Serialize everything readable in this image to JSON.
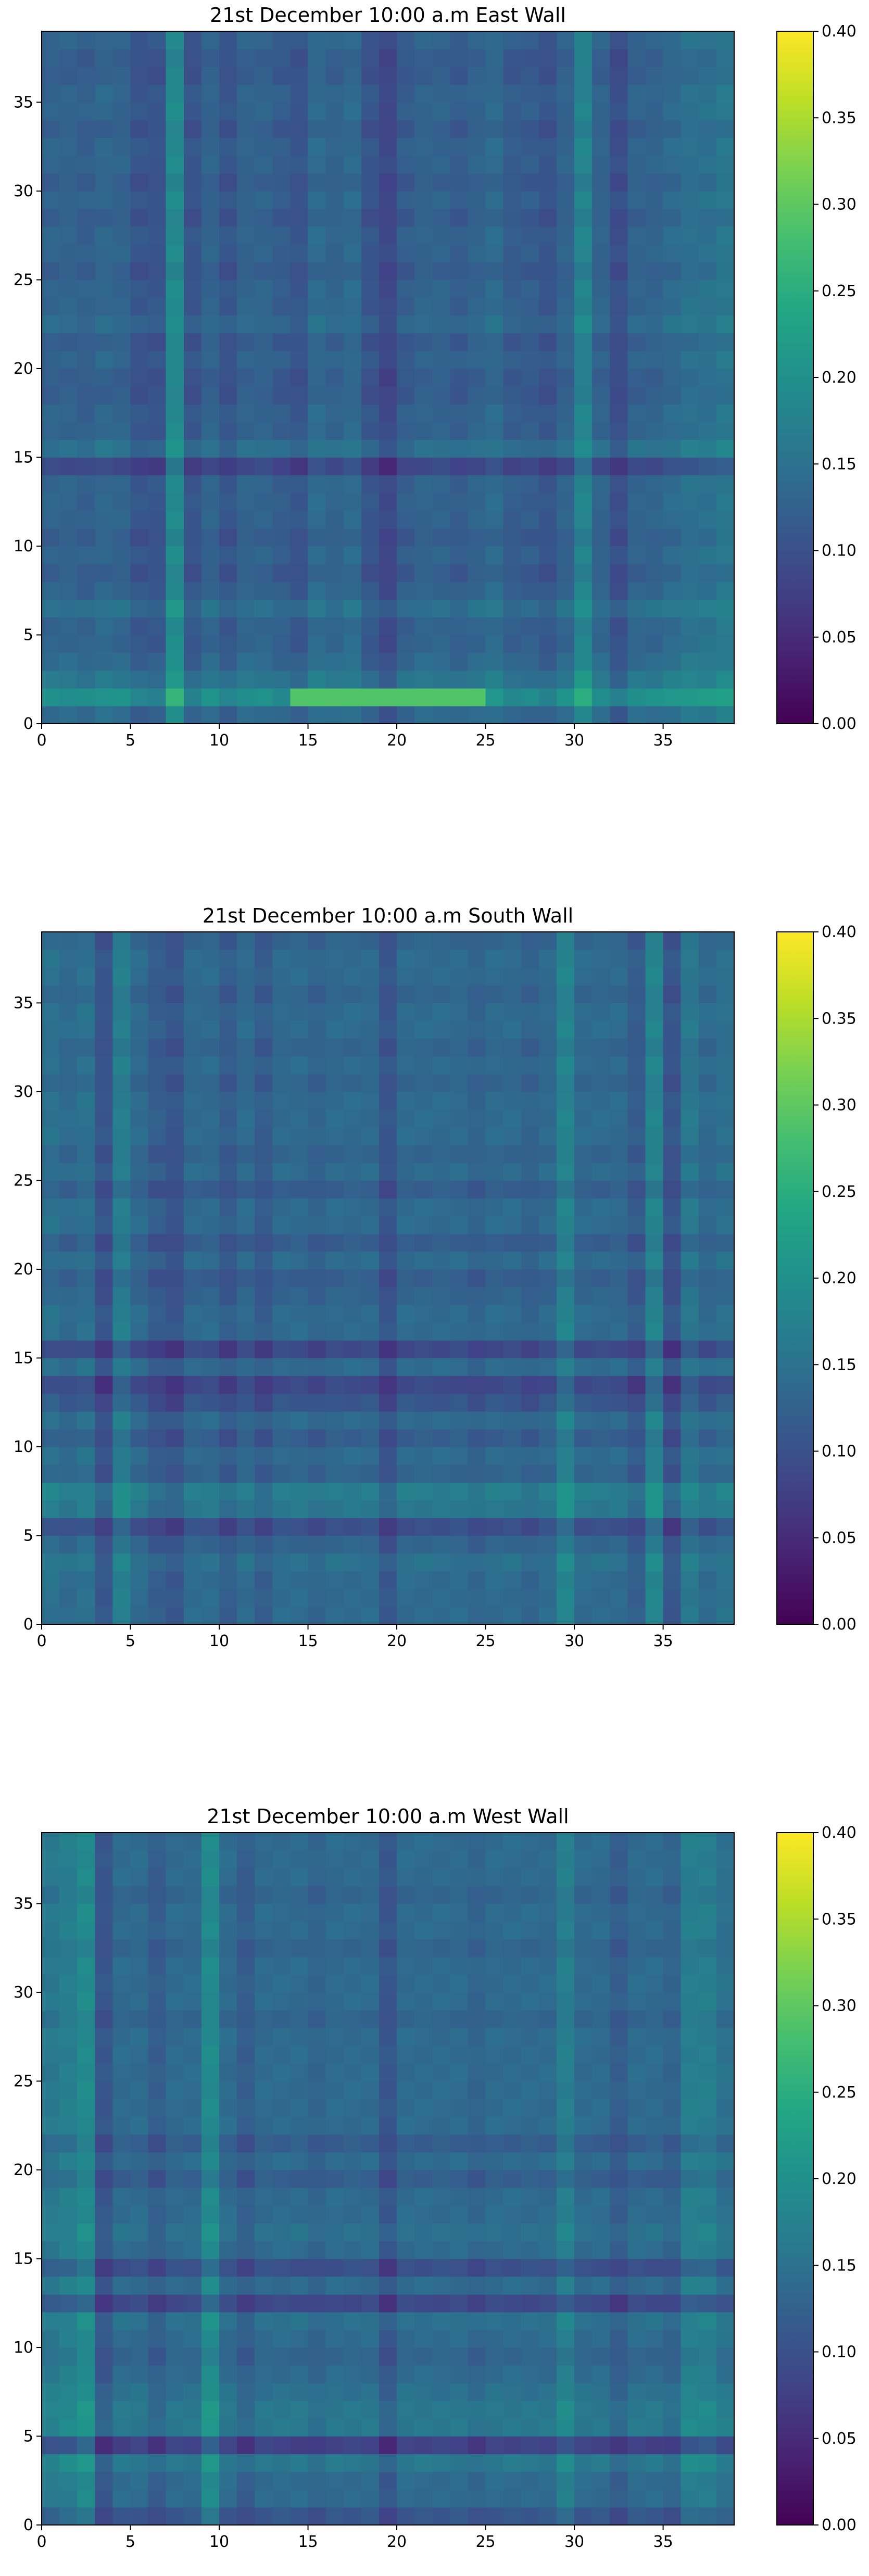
{
  "chart_data": [
    {
      "type": "heatmap",
      "title": "21st December 10:00 a.m East Wall",
      "xlabel": "",
      "ylabel": "",
      "grid_size": 39,
      "xlim": [
        0,
        39
      ],
      "ylim": [
        0,
        39
      ],
      "x_ticks": [
        "0",
        "5",
        "10",
        "15",
        "20",
        "25",
        "30",
        "35"
      ],
      "y_ticks": [
        "0",
        "5",
        "10",
        "15",
        "20",
        "25",
        "30",
        "35"
      ],
      "colorbar": {
        "min": 0.0,
        "max": 0.4,
        "ticks": [
          "0.00",
          "0.05",
          "0.10",
          "0.15",
          "0.20",
          "0.25",
          "0.30",
          "0.35",
          "0.40"
        ],
        "colormap": "viridis"
      },
      "base_value": 0.13,
      "col_offsets": [
        0.0,
        0.0,
        -0.005,
        0.005,
        0.0,
        -0.02,
        -0.02,
        0.06,
        -0.02,
        0.0,
        -0.02,
        0.0,
        0.0,
        -0.01,
        -0.02,
        0.01,
        0.0,
        0.01,
        -0.02,
        -0.04,
        -0.01,
        0.0,
        0.0,
        -0.01,
        0.0,
        0.01,
        -0.01,
        -0.01,
        -0.02,
        0.0,
        0.05,
        0.0,
        -0.03,
        0.0,
        0.0,
        0.01,
        0.02,
        0.02,
        0.03
      ],
      "row_offsets": [
        0.01,
        0.07,
        0.03,
        0.01,
        0.0,
        0.0,
        0.02,
        0.0,
        -0.01,
        0.0,
        -0.01,
        0.0,
        0.0,
        0.0,
        -0.04,
        0.02,
        0.0,
        0.0,
        -0.01,
        -0.01,
        0.0,
        -0.01,
        0.01,
        0.0,
        0.0,
        -0.01,
        0.0,
        0.0,
        -0.01,
        0.0,
        -0.01,
        0.0,
        0.0,
        -0.01,
        0.0,
        0.0,
        -0.01,
        -0.01,
        0.0
      ],
      "hotspot": {
        "row": 1,
        "cols": [
          14,
          24
        ],
        "value": 0.29
      }
    },
    {
      "type": "heatmap",
      "title": "21st December 10:00 a.m South Wall",
      "xlabel": "",
      "ylabel": "",
      "grid_size": 39,
      "xlim": [
        0,
        39
      ],
      "ylim": [
        0,
        39
      ],
      "x_ticks": [
        "0",
        "5",
        "10",
        "15",
        "20",
        "25",
        "30",
        "35"
      ],
      "y_ticks": [
        "0",
        "5",
        "10",
        "15",
        "20",
        "25",
        "30",
        "35"
      ],
      "colorbar": {
        "min": 0.0,
        "max": 0.4,
        "ticks": [
          "0.00",
          "0.05",
          "0.10",
          "0.15",
          "0.20",
          "0.25",
          "0.30",
          "0.35",
          "0.40"
        ],
        "colormap": "viridis"
      },
      "base_value": 0.14,
      "col_offsets": [
        0.01,
        0.0,
        0.01,
        -0.03,
        0.03,
        0.0,
        -0.02,
        -0.03,
        0.0,
        0.0,
        -0.02,
        0.0,
        -0.02,
        0.0,
        0.0,
        -0.01,
        0.0,
        0.0,
        0.0,
        -0.03,
        0.0,
        0.0,
        0.0,
        0.0,
        -0.01,
        0.0,
        0.0,
        -0.01,
        0.0,
        0.04,
        0.0,
        0.0,
        0.0,
        -0.02,
        0.04,
        -0.03,
        0.02,
        0.0,
        0.01
      ],
      "row_offsets": [
        0.0,
        0.0,
        0.0,
        0.01,
        -0.01,
        -0.04,
        0.02,
        0.03,
        -0.01,
        0.0,
        -0.02,
        0.0,
        -0.03,
        -0.05,
        0.0,
        -0.05,
        0.0,
        0.0,
        -0.01,
        -0.02,
        0.0,
        -0.02,
        0.0,
        0.0,
        -0.02,
        0.0,
        -0.01,
        0.0,
        0.0,
        0.0,
        -0.01,
        0.0,
        -0.01,
        0.0,
        0.0,
        -0.01,
        0.0,
        0.0,
        -0.01
      ],
      "hotspot": null
    },
    {
      "type": "heatmap",
      "title": "21st December 10:00 a.m West Wall",
      "xlabel": "",
      "ylabel": "",
      "grid_size": 39,
      "xlim": [
        0,
        39
      ],
      "ylim": [
        0,
        39
      ],
      "x_ticks": [
        "0",
        "5",
        "10",
        "15",
        "20",
        "25",
        "30",
        "35"
      ],
      "y_ticks": [
        "0",
        "5",
        "10",
        "15",
        "20",
        "25",
        "30",
        "35"
      ],
      "colorbar": {
        "min": 0.0,
        "max": 0.4,
        "ticks": [
          "0.00",
          "0.05",
          "0.10",
          "0.15",
          "0.20",
          "0.25",
          "0.30",
          "0.35",
          "0.40"
        ],
        "colormap": "viridis"
      },
      "base_value": 0.14,
      "col_offsets": [
        0.02,
        0.03,
        0.05,
        -0.03,
        0.0,
        0.0,
        -0.02,
        0.0,
        0.0,
        0.05,
        0.0,
        -0.02,
        0.0,
        0.0,
        0.0,
        -0.01,
        0.0,
        0.0,
        0.0,
        -0.03,
        0.0,
        0.0,
        0.0,
        0.0,
        -0.01,
        0.0,
        0.0,
        0.0,
        0.0,
        0.03,
        0.0,
        0.0,
        -0.02,
        0.0,
        0.0,
        -0.01,
        0.03,
        0.03,
        0.01
      ],
      "row_offsets": [
        -0.03,
        0.0,
        0.0,
        0.02,
        -0.06,
        0.02,
        0.02,
        0.01,
        0.0,
        -0.01,
        0.0,
        0.01,
        -0.05,
        0.0,
        -0.04,
        0.0,
        0.01,
        0.0,
        0.0,
        -0.02,
        0.0,
        -0.02,
        0.0,
        0.0,
        0.0,
        0.0,
        0.0,
        0.0,
        -0.01,
        0.0,
        0.0,
        0.0,
        -0.01,
        0.0,
        0.0,
        -0.01,
        0.0,
        0.0,
        0.0
      ],
      "hotspot": null
    }
  ]
}
